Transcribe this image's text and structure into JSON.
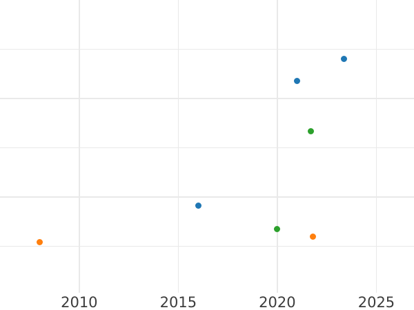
{
  "chart_data": {
    "type": "scatter",
    "title": "",
    "xlabel": "",
    "ylabel": "",
    "x_tick_labels": [
      "2010",
      "2015",
      "2020",
      "2025"
    ],
    "x_ticks": [
      2010,
      2015,
      2020,
      2025
    ],
    "y_tick_labels": [],
    "y_gridline_values": [
      1,
      2,
      3,
      4,
      5
    ],
    "xlim": [
      2006.0,
      2026.9
    ],
    "ylim": [
      0,
      6
    ],
    "grid": true,
    "legend_position": "none",
    "note_y_axis": "y tick labels not visible in image; values estimated in gridline units",
    "series": [
      {
        "name": "blue",
        "color": "#1f77b4",
        "points": [
          {
            "x": 2016.0,
            "y": 1.83
          },
          {
            "x": 2021.0,
            "y": 4.36
          },
          {
            "x": 2023.35,
            "y": 4.8
          }
        ]
      },
      {
        "name": "green",
        "color": "#2ca02c",
        "points": [
          {
            "x": 2020.0,
            "y": 1.35
          },
          {
            "x": 2021.7,
            "y": 3.34
          }
        ]
      },
      {
        "name": "orange",
        "color": "#ff7f0e",
        "points": [
          {
            "x": 2008.0,
            "y": 1.08
          },
          {
            "x": 2021.8,
            "y": 1.19
          }
        ]
      }
    ],
    "style": {
      "grid_color": "#e9e9e9",
      "tick_label_color": "#3c3c3c",
      "background": "#ffffff",
      "marker_diameter_px": 9
    }
  }
}
